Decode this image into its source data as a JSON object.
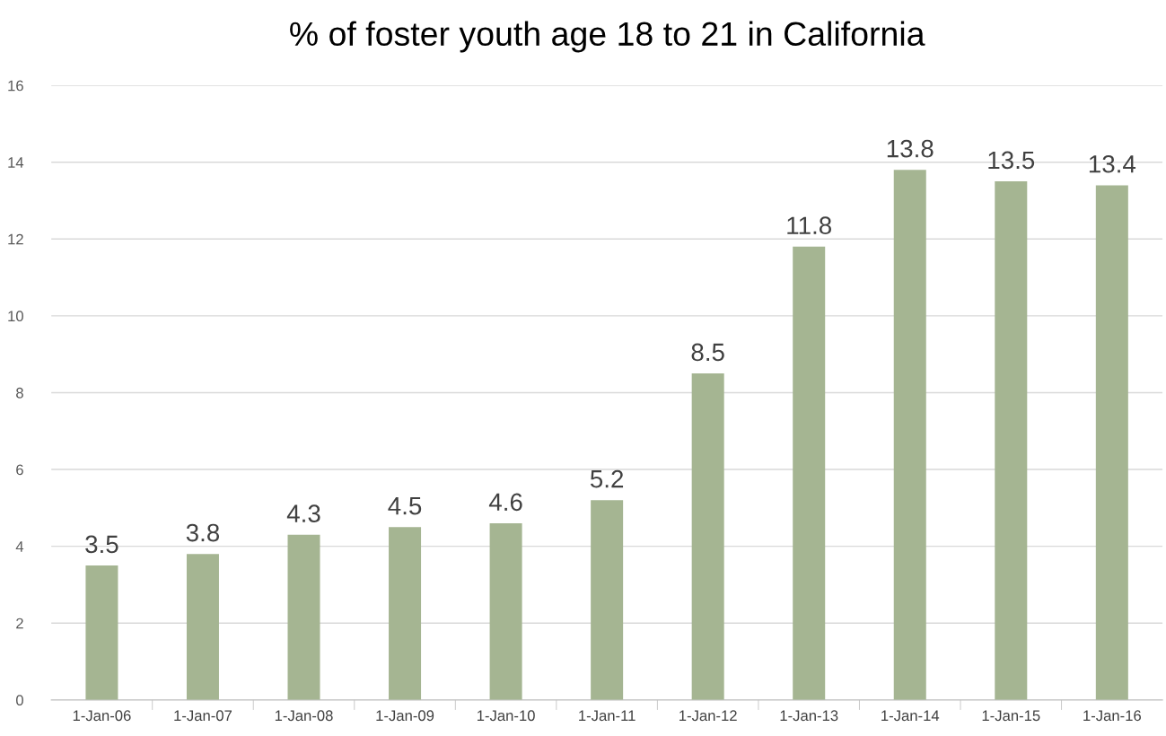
{
  "chart_data": {
    "type": "bar",
    "title": "% of foster youth age 18 to 21 in California",
    "categories": [
      "1-Jan-06",
      "1-Jan-07",
      "1-Jan-08",
      "1-Jan-09",
      "1-Jan-10",
      "1-Jan-11",
      "1-Jan-12",
      "1-Jan-13",
      "1-Jan-14",
      "1-Jan-15",
      "1-Jan-16"
    ],
    "values": [
      3.5,
      3.8,
      4.3,
      4.5,
      4.6,
      5.2,
      8.5,
      11.8,
      13.8,
      13.5,
      13.4
    ],
    "color": "#a5b592",
    "ylim": [
      0,
      16
    ],
    "yticks": [
      0,
      2,
      4,
      6,
      8,
      10,
      12,
      14,
      16
    ],
    "grid": "y",
    "data_labels": true
  }
}
